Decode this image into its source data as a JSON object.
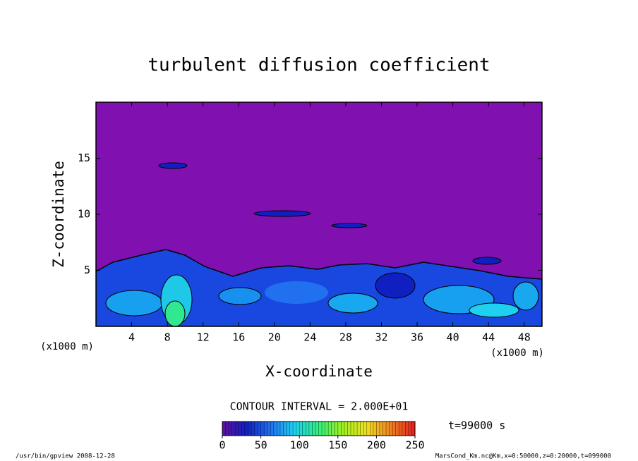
{
  "chart_data": {
    "type": "contour",
    "title": "turbulent diffusion coefficient",
    "xlabel": "X-coordinate",
    "ylabel": "Z-coordinate",
    "x_unit": "(x1000 m)",
    "xlim": [
      0,
      50
    ],
    "ylim": [
      0,
      20
    ],
    "xticks": [
      4,
      8,
      12,
      16,
      20,
      24,
      28,
      32,
      36,
      40,
      44,
      48
    ],
    "yticks": [
      5,
      10,
      15
    ],
    "background_color": "#8010b0",
    "contour_interval": "CONTOUR INTERVAL = 2.000E+01",
    "time_label": "t=99000 s",
    "colorbar": {
      "lim": [
        0,
        250
      ],
      "ticks": [
        0,
        50,
        100,
        150,
        200,
        250
      ],
      "colors": [
        "#6010a0",
        "#1020c0",
        "#2070f0",
        "#20d0f0",
        "#30f080",
        "#a0f020",
        "#f0e020",
        "#f08020",
        "#e02020"
      ]
    },
    "footer_left": "/usr/bin/gpview  2008-12-28",
    "footer_right": "MarsCond_Km.nc@Km,x=0:50000,z=0:20000,t=099000"
  }
}
